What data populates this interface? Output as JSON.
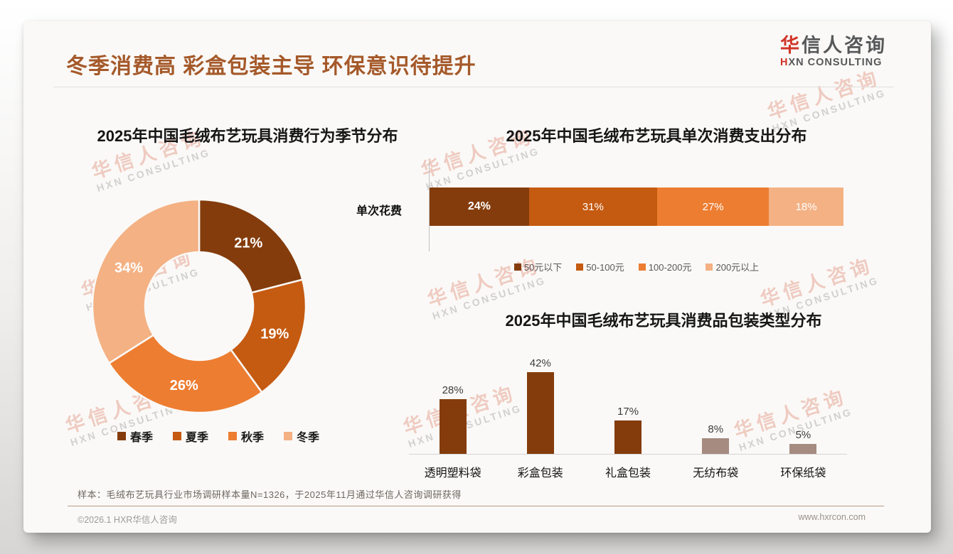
{
  "header": {
    "title": "冬季消费高 彩盒包装主导 环保意识待提升",
    "logo": {
      "main_red": "华",
      "main_rest": "信人咨询",
      "sub_red": "H",
      "sub_rest": "XN CONSULTING"
    }
  },
  "watermark": {
    "line1": "华信人咨询",
    "line2": "HXN CONSULTING"
  },
  "chart_data": [
    {
      "type": "pie",
      "variant": "donut",
      "title": "2025年中国毛绒布艺玩具消费行为季节分布",
      "categories": [
        "春季",
        "夏季",
        "秋季",
        "冬季"
      ],
      "values": [
        21,
        19,
        26,
        34
      ],
      "labels": [
        "21%",
        "19%",
        "26%",
        "34%"
      ],
      "colors": [
        "#843C0C",
        "#C55A11",
        "#ED7D31",
        "#F4B183"
      ],
      "legend_position": "bottom",
      "start_angle_deg": -90,
      "direction": "clockwise"
    },
    {
      "type": "bar",
      "variant": "stacked-horizontal",
      "title": "2025年中国毛绒布艺玩具单次消费支出分布",
      "category_axis_label": "单次花费",
      "series": [
        {
          "name": "50元以下",
          "value": 24,
          "label": "24%"
        },
        {
          "name": "50-100元",
          "value": 31,
          "label": "31%"
        },
        {
          "name": "100-200元",
          "value": 27,
          "label": "27%"
        },
        {
          "name": "200元以上",
          "value": 18,
          "label": "18%"
        }
      ],
      "colors": [
        "#843C0C",
        "#C55A11",
        "#ED7D31",
        "#F4B183"
      ],
      "xlim": [
        0,
        100
      ],
      "legend_position": "bottom"
    },
    {
      "type": "bar",
      "variant": "vertical",
      "title": "2025年中国毛绒布艺玩具消费品包装类型分布",
      "categories": [
        "透明塑料袋",
        "彩盒包装",
        "礼盒包装",
        "无纺布袋",
        "环保纸袋"
      ],
      "values": [
        28,
        42,
        17,
        8,
        5
      ],
      "labels": [
        "28%",
        "42%",
        "17%",
        "8%",
        "5%"
      ],
      "colors": [
        "#843C0C",
        "#843C0C",
        "#843C0C",
        "#A58B80",
        "#A58B80"
      ],
      "ylim": [
        0,
        45
      ],
      "grid": false
    }
  ],
  "footer": {
    "note": "样本：毛绒布艺玩具行业市场调研样本量N=1326，于2025年11月通过华信人咨询调研获得",
    "copyright": "©2026.1 HXR华信人咨询",
    "website": "www.hxrcon.com"
  }
}
